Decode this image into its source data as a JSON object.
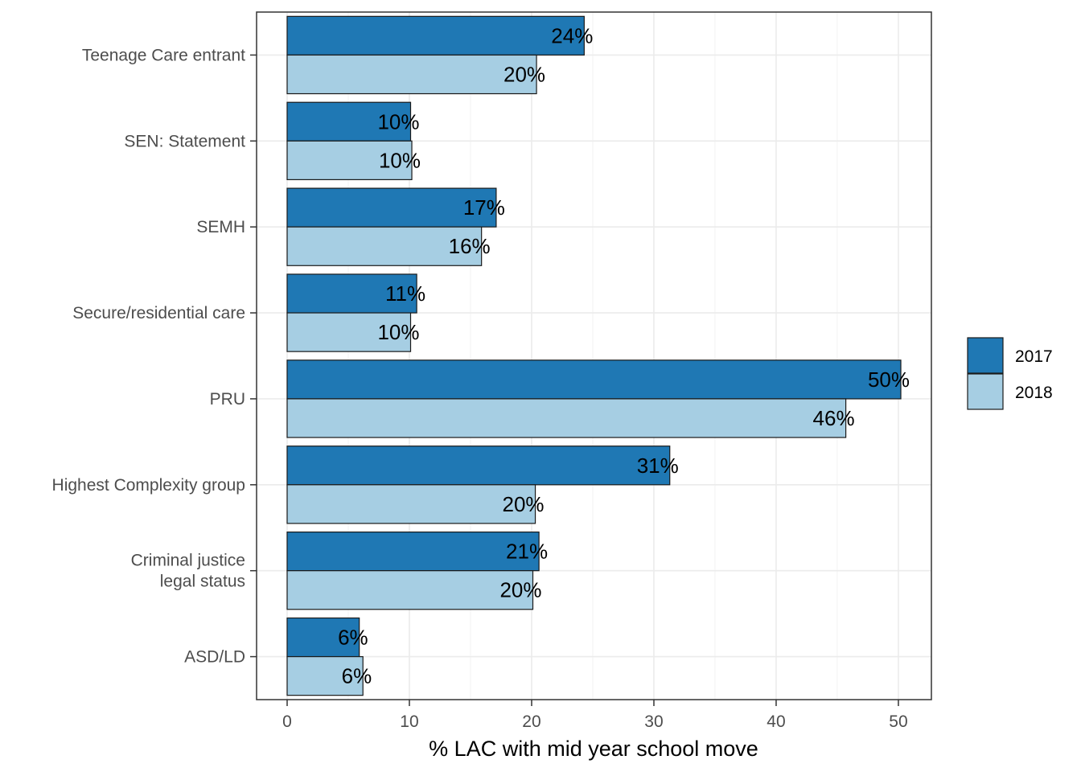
{
  "chart_data": {
    "type": "bar",
    "orientation": "horizontal",
    "categories": [
      "Teenage Care entrant",
      "SEN: Statement",
      "SEMH",
      "Secure/residential care",
      "PRU",
      "Highest Complexity group",
      "Criminal justice\nlegal status",
      "ASD/LD"
    ],
    "series": [
      {
        "name": "2017",
        "color": "#1f78b4",
        "values": [
          24.3,
          10.1,
          17.1,
          10.6,
          50.2,
          31.3,
          20.6,
          5.9
        ],
        "labels": [
          "24%",
          "10%",
          "17%",
          "11%",
          "50%",
          "31%",
          "21%",
          "6%"
        ]
      },
      {
        "name": "2018",
        "color": "#a6cee3",
        "values": [
          20.4,
          10.2,
          15.9,
          10.1,
          45.7,
          20.3,
          20.1,
          6.2
        ],
        "labels": [
          "20%",
          "10%",
          "16%",
          "10%",
          "46%",
          "20%",
          "20%",
          "6%"
        ]
      }
    ],
    "xlabel": "% LAC with mid year school move",
    "ylabel": "",
    "title": "",
    "xlim": [
      -2.5,
      52.7
    ],
    "xticks": [
      0,
      10,
      20,
      30,
      40,
      50
    ],
    "grid": true,
    "legend_position": "right"
  }
}
